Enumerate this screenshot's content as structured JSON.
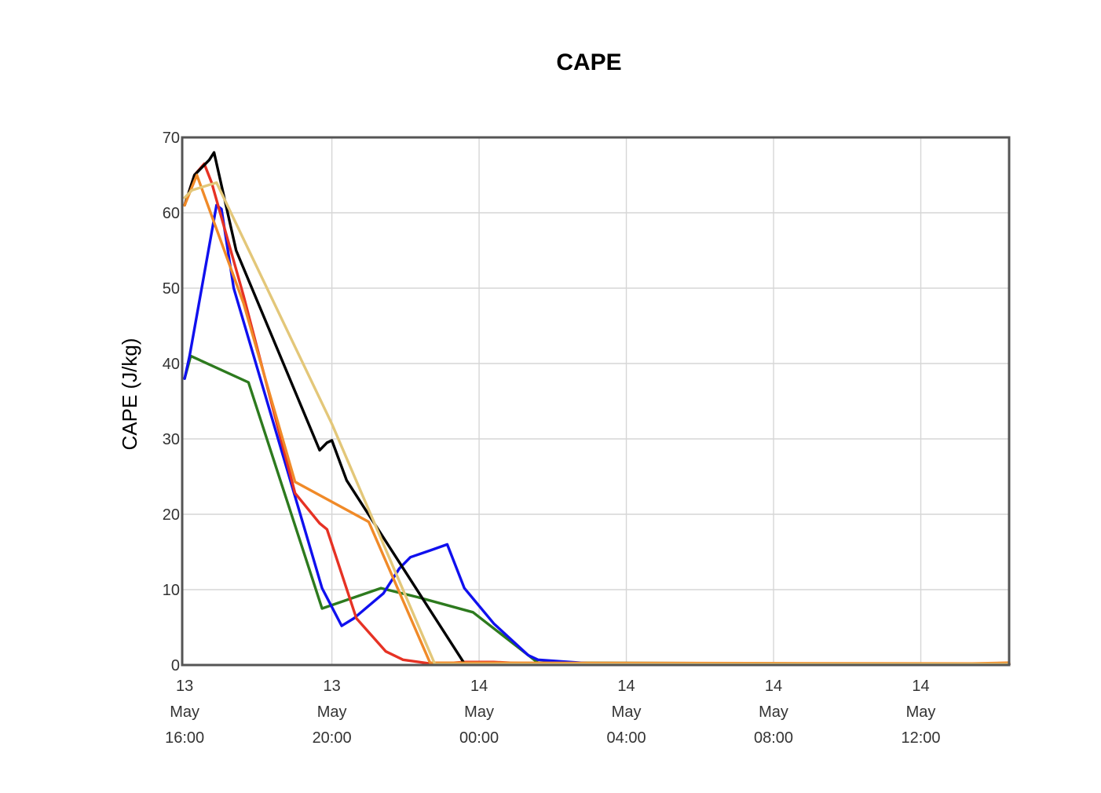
{
  "chart_data": {
    "type": "line",
    "title": "CAPE",
    "ylabel": "CAPE (J/kg)",
    "xlabel": "",
    "ylim": [
      0,
      70
    ],
    "xlim": [
      "2024-05-13 15:56",
      "2024-05-14 14:24"
    ],
    "grid": true,
    "legend": "none",
    "yticks": [
      0,
      10,
      20,
      30,
      40,
      50,
      60,
      70
    ],
    "xticks": [
      {
        "t": "2024-05-13 16:00",
        "lines": [
          "13",
          "May",
          "16:00"
        ]
      },
      {
        "t": "2024-05-13 20:00",
        "lines": [
          "13",
          "May",
          "20:00"
        ]
      },
      {
        "t": "2024-05-14 00:00",
        "lines": [
          "14",
          "May",
          "00:00"
        ]
      },
      {
        "t": "2024-05-14 04:00",
        "lines": [
          "14",
          "May",
          "04:00"
        ]
      },
      {
        "t": "2024-05-14 08:00",
        "lines": [
          "14",
          "May",
          "08:00"
        ]
      },
      {
        "t": "2024-05-14 12:00",
        "lines": [
          "14",
          "May",
          "12:00"
        ]
      }
    ],
    "series": [
      {
        "color": "#2d7a1e",
        "points": [
          [
            "2024-05-13 16:00",
            38
          ],
          [
            "2024-05-13 16:10",
            41
          ],
          [
            "2024-05-13 17:44",
            37.5
          ],
          [
            "2024-05-13 19:44",
            7.5
          ],
          [
            "2024-05-13 21:20",
            10.2
          ],
          [
            "2024-05-13 22:20",
            9
          ],
          [
            "2024-05-13 23:50",
            7
          ],
          [
            "2024-05-14 01:36",
            0.3
          ],
          [
            "2024-05-14 14:24",
            0.1
          ]
        ]
      },
      {
        "color": "#1010ee",
        "points": [
          [
            "2024-05-13 16:00",
            38
          ],
          [
            "2024-05-13 16:08",
            41
          ],
          [
            "2024-05-13 16:52",
            61
          ],
          [
            "2024-05-13 17:00",
            60.5
          ],
          [
            "2024-05-13 17:20",
            50
          ],
          [
            "2024-05-13 19:44",
            10.2
          ],
          [
            "2024-05-13 20:16",
            5.2
          ],
          [
            "2024-05-13 20:36",
            6.2
          ],
          [
            "2024-05-13 21:24",
            9.5
          ],
          [
            "2024-05-13 21:50",
            12.8
          ],
          [
            "2024-05-13 22:08",
            14.3
          ],
          [
            "2024-05-13 22:40",
            15.2
          ],
          [
            "2024-05-13 23:08",
            16
          ],
          [
            "2024-05-13 23:36",
            10.2
          ],
          [
            "2024-05-14 00:24",
            5.5
          ],
          [
            "2024-05-14 01:20",
            1.3
          ],
          [
            "2024-05-14 01:36",
            0.7
          ],
          [
            "2024-05-14 03:20",
            0.1
          ],
          [
            "2024-05-14 14:24",
            0.1
          ]
        ]
      },
      {
        "color": "#e63224",
        "points": [
          [
            "2024-05-13 16:00",
            61
          ],
          [
            "2024-05-13 16:16",
            65
          ],
          [
            "2024-05-13 16:32",
            66.5
          ],
          [
            "2024-05-13 16:44",
            64
          ],
          [
            "2024-05-13 17:36",
            49
          ],
          [
            "2024-05-13 19:00",
            22.8
          ],
          [
            "2024-05-13 19:40",
            18.8
          ],
          [
            "2024-05-13 19:52",
            18
          ],
          [
            "2024-05-13 20:40",
            6.2
          ],
          [
            "2024-05-13 21:28",
            1.8
          ],
          [
            "2024-05-13 21:56",
            0.7
          ],
          [
            "2024-05-13 22:48",
            0.1
          ],
          [
            "2024-05-13 23:36",
            0.4
          ],
          [
            "2024-05-14 00:24",
            0.4
          ],
          [
            "2024-05-14 01:36",
            0.1
          ],
          [
            "2024-05-14 14:24",
            0.1
          ]
        ]
      },
      {
        "color": "#000000",
        "points": [
          [
            "2024-05-13 16:00",
            61
          ],
          [
            "2024-05-13 16:16",
            65
          ],
          [
            "2024-05-13 16:40",
            67
          ],
          [
            "2024-05-13 16:48",
            68
          ],
          [
            "2024-05-13 17:24",
            55
          ],
          [
            "2024-05-13 19:40",
            28.5
          ],
          [
            "2024-05-13 19:52",
            29.5
          ],
          [
            "2024-05-13 20:00",
            29.8
          ],
          [
            "2024-05-13 20:24",
            24.5
          ],
          [
            "2024-05-13 23:36",
            0.2
          ],
          [
            "2024-05-14 14:24",
            0.1
          ]
        ]
      },
      {
        "color": "#f08a28",
        "points": [
          [
            "2024-05-13 16:00",
            61
          ],
          [
            "2024-05-13 16:20",
            65
          ],
          [
            "2024-05-13 17:36",
            48
          ],
          [
            "2024-05-13 19:00",
            24.3
          ],
          [
            "2024-05-13 21:00",
            19
          ],
          [
            "2024-05-13 22:40",
            0.3
          ],
          [
            "2024-05-14 13:24",
            0.2
          ],
          [
            "2024-05-14 14:24",
            0.3
          ]
        ]
      },
      {
        "color": "#e3c779",
        "points": [
          [
            "2024-05-13 16:00",
            62
          ],
          [
            "2024-05-13 16:12",
            63
          ],
          [
            "2024-05-13 16:52",
            64
          ],
          [
            "2024-05-13 20:00",
            32
          ],
          [
            "2024-05-13 22:48",
            0.1
          ],
          [
            "2024-05-14 14:24",
            0.1
          ]
        ]
      }
    ]
  }
}
